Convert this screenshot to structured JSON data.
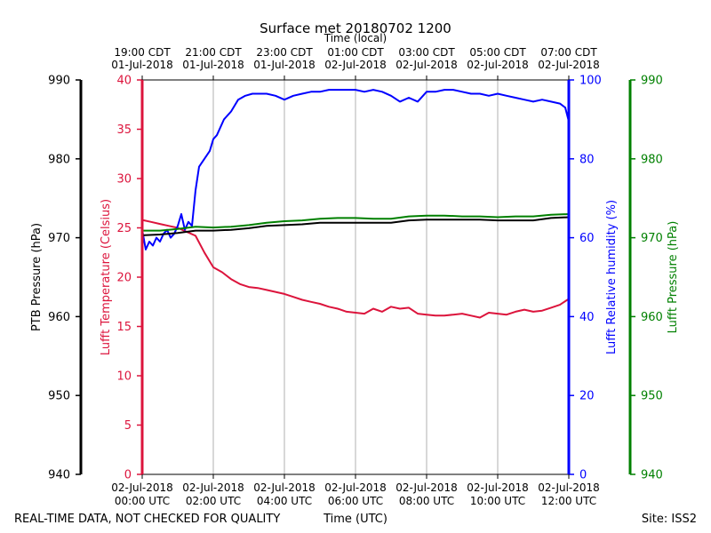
{
  "chart_data": {
    "type": "line",
    "title": "Surface met 20180702 1200",
    "top_axis_label": "Time (local)",
    "bottom_axis_label": "Time (UTC)",
    "footer_left": "REAL-TIME DATA, NOT CHECKED FOR QUALITY",
    "footer_right": "Site: ISS2",
    "x_range_hours": [
      0,
      12
    ],
    "grid": "vertical",
    "x_ticks_utc": [
      {
        "hour": 0,
        "line1": "02-Jul-2018",
        "line2": "00:00 UTC"
      },
      {
        "hour": 2,
        "line1": "02-Jul-2018",
        "line2": "02:00 UTC"
      },
      {
        "hour": 4,
        "line1": "02-Jul-2018",
        "line2": "04:00 UTC"
      },
      {
        "hour": 6,
        "line1": "02-Jul-2018",
        "line2": "06:00 UTC"
      },
      {
        "hour": 8,
        "line1": "02-Jul-2018",
        "line2": "08:00 UTC"
      },
      {
        "hour": 10,
        "line1": "02-Jul-2018",
        "line2": "10:00 UTC"
      },
      {
        "hour": 12,
        "line1": "02-Jul-2018",
        "line2": "12:00 UTC"
      }
    ],
    "x_ticks_local": [
      {
        "hour": 0,
        "line1": "19:00 CDT",
        "line2": "01-Jul-2018"
      },
      {
        "hour": 2,
        "line1": "21:00 CDT",
        "line2": "01-Jul-2018"
      },
      {
        "hour": 4,
        "line1": "23:00 CDT",
        "line2": "01-Jul-2018"
      },
      {
        "hour": 6,
        "line1": "01:00 CDT",
        "line2": "02-Jul-2018"
      },
      {
        "hour": 8,
        "line1": "03:00 CDT",
        "line2": "02-Jul-2018"
      },
      {
        "hour": 10,
        "line1": "05:00 CDT",
        "line2": "02-Jul-2018"
      },
      {
        "hour": 12,
        "line1": "07:00 CDT",
        "line2": "02-Jul-2018"
      }
    ],
    "axes": {
      "ptb_pressure": {
        "label": "PTB Pressure (hPa)",
        "color": "#000000",
        "range": [
          940,
          990
        ],
        "ticks": [
          940,
          950,
          960,
          970,
          980,
          990
        ]
      },
      "temperature": {
        "label": "Lufft Temperature (Celsius)",
        "color": "#dc143c",
        "range": [
          0,
          40
        ],
        "ticks": [
          0,
          5,
          10,
          15,
          20,
          25,
          30,
          35,
          40
        ]
      },
      "humidity": {
        "label": "Lufft Relative humidity (%)",
        "color": "#0000ff",
        "range": [
          0,
          100
        ],
        "ticks": [
          0,
          20,
          40,
          60,
          80,
          100
        ]
      },
      "lufft_pressure": {
        "label": "Lufft Pressure (hPa)",
        "color": "#008000",
        "range": [
          940,
          990
        ],
        "ticks": [
          940,
          950,
          960,
          970,
          980,
          990
        ]
      }
    },
    "series": [
      {
        "name": "Lufft Temperature (Celsius)",
        "axis": "temperature",
        "color": "#dc143c",
        "x": [
          0,
          0.25,
          0.5,
          0.75,
          1.0,
          1.25,
          1.5,
          1.75,
          2.0,
          2.25,
          2.5,
          2.75,
          3.0,
          3.25,
          3.5,
          3.75,
          4.0,
          4.25,
          4.5,
          4.75,
          5.0,
          5.25,
          5.5,
          5.75,
          6.0,
          6.25,
          6.5,
          6.75,
          7.0,
          7.25,
          7.5,
          7.75,
          8.0,
          8.25,
          8.5,
          8.75,
          9.0,
          9.25,
          9.5,
          9.75,
          10.0,
          10.25,
          10.5,
          10.75,
          11.0,
          11.25,
          11.5,
          11.75,
          12.0
        ],
        "y": [
          25.8,
          25.6,
          25.4,
          25.2,
          25.0,
          24.6,
          24.2,
          22.5,
          21.0,
          20.5,
          19.8,
          19.3,
          19.0,
          18.9,
          18.7,
          18.5,
          18.3,
          18.0,
          17.7,
          17.5,
          17.3,
          17.0,
          16.8,
          16.5,
          16.4,
          16.3,
          16.8,
          16.5,
          17.0,
          16.8,
          16.9,
          16.3,
          16.2,
          16.1,
          16.1,
          16.2,
          16.3,
          16.1,
          15.9,
          16.4,
          16.3,
          16.2,
          16.5,
          16.7,
          16.5,
          16.6,
          16.9,
          17.2,
          17.8
        ]
      },
      {
        "name": "Lufft Relative humidity (%)",
        "axis": "humidity",
        "color": "#0000ff",
        "x": [
          0,
          0.1,
          0.2,
          0.3,
          0.4,
          0.5,
          0.6,
          0.7,
          0.8,
          0.9,
          1.0,
          1.1,
          1.2,
          1.3,
          1.4,
          1.5,
          1.6,
          1.75,
          1.9,
          2.0,
          2.1,
          2.2,
          2.3,
          2.5,
          2.7,
          2.9,
          3.1,
          3.3,
          3.5,
          3.75,
          4.0,
          4.25,
          4.5,
          4.75,
          5.0,
          5.25,
          5.5,
          5.75,
          6.0,
          6.25,
          6.5,
          6.75,
          7.0,
          7.25,
          7.5,
          7.75,
          8.0,
          8.25,
          8.5,
          8.75,
          9.0,
          9.25,
          9.5,
          9.75,
          10.0,
          10.25,
          10.5,
          10.75,
          11.0,
          11.25,
          11.5,
          11.75,
          11.9,
          12.0
        ],
        "y": [
          62,
          57,
          59,
          58,
          60,
          59,
          61,
          62,
          60,
          61,
          63,
          66,
          62,
          64,
          63,
          72,
          78,
          80,
          82,
          85,
          86,
          88,
          90,
          92,
          95,
          96,
          96.5,
          96.5,
          96.5,
          96,
          95,
          96,
          96.5,
          97,
          97,
          97.5,
          97.5,
          97.5,
          97.5,
          97,
          97.5,
          97,
          96,
          94.5,
          95.5,
          94.5,
          97,
          97,
          97.5,
          97.5,
          97,
          96.5,
          96.5,
          96,
          96.5,
          96,
          95.5,
          95,
          94.5,
          95,
          94.5,
          94,
          93,
          89.5
        ]
      },
      {
        "name": "PTB Pressure (hPa)",
        "axis": "ptb_pressure",
        "color": "#000000",
        "x": [
          0,
          0.5,
          1.0,
          1.5,
          2.0,
          2.5,
          3.0,
          3.5,
          4.0,
          4.5,
          5.0,
          5.5,
          6.0,
          6.5,
          7.0,
          7.5,
          8.0,
          8.5,
          9.0,
          9.5,
          10.0,
          10.5,
          11.0,
          11.5,
          12.0
        ],
        "y": [
          970.3,
          970.4,
          970.6,
          970.9,
          970.9,
          971.0,
          971.2,
          971.5,
          971.6,
          971.7,
          971.9,
          971.9,
          971.9,
          971.9,
          971.9,
          972.2,
          972.3,
          972.3,
          972.3,
          972.3,
          972.2,
          972.2,
          972.2,
          972.5,
          972.6
        ]
      },
      {
        "name": "Lufft Pressure (hPa)",
        "axis": "lufft_pressure",
        "color": "#008000",
        "x": [
          0,
          0.5,
          1.0,
          1.5,
          2.0,
          2.5,
          3.0,
          3.5,
          4.0,
          4.5,
          5.0,
          5.5,
          6.0,
          6.5,
          7.0,
          7.5,
          8.0,
          8.5,
          9.0,
          9.5,
          10.0,
          10.5,
          11.0,
          11.5,
          12.0
        ],
        "y": [
          970.9,
          970.9,
          971.1,
          971.4,
          971.3,
          971.4,
          971.6,
          971.9,
          972.1,
          972.2,
          972.4,
          972.5,
          972.5,
          972.4,
          972.4,
          972.7,
          972.8,
          972.8,
          972.7,
          972.7,
          972.6,
          972.7,
          972.7,
          972.9,
          973.0
        ]
      }
    ]
  }
}
